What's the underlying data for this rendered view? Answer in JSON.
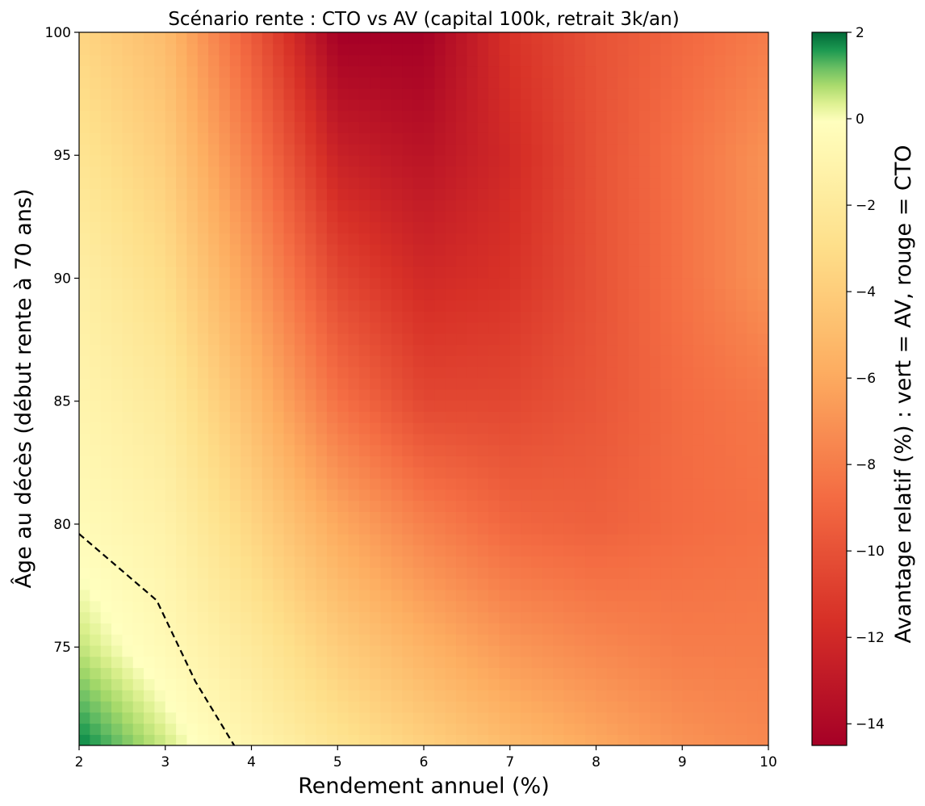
{
  "chart_data": {
    "type": "heatmap",
    "title": "Scénario rente : CTO vs AV (capital 100k, retrait 3k/an)",
    "xlabel": "Rendement annuel (%)",
    "ylabel": "Âge au décès (début rente à 70 ans)",
    "xlim": [
      2,
      10
    ],
    "ylim": [
      71,
      100
    ],
    "xticks": [
      2,
      3,
      4,
      5,
      6,
      7,
      8,
      9,
      10
    ],
    "yticks": [
      75,
      80,
      85,
      90,
      95,
      100
    ],
    "colorbar": {
      "label": "Avantage relatif (%) : vert = AV, rouge = CTO",
      "vmin": -14.5,
      "vmax": 2,
      "center": 0,
      "ticks": [
        2,
        0,
        -2,
        -4,
        -6,
        -8,
        -10,
        -12,
        -14
      ],
      "colormap": "RdYlGn"
    },
    "x": [
      2,
      3,
      4,
      5,
      6,
      7,
      8,
      9,
      10
    ],
    "y": [
      71,
      75,
      80,
      85,
      90,
      95,
      100
    ],
    "values": [
      [
        1.8,
        0.5,
        -1.0,
        -2.5,
        -3.8,
        -5.0,
        -6.0,
        -7.0,
        -7.5
      ],
      [
        0.6,
        -0.5,
        -2.0,
        -4.0,
        -5.5,
        -6.8,
        -7.5,
        -8.0,
        -8.0
      ],
      [
        -0.4,
        -1.2,
        -3.5,
        -6.0,
        -7.8,
        -9.0,
        -9.3,
        -8.8,
        -8.5
      ],
      [
        -1.0,
        -2.0,
        -5.0,
        -8.5,
        -10.5,
        -10.5,
        -9.8,
        -8.8,
        -8.2
      ],
      [
        -1.5,
        -3.0,
        -6.5,
        -10.5,
        -12.0,
        -11.5,
        -10.0,
        -8.5,
        -7.0
      ],
      [
        -2.5,
        -4.0,
        -8.0,
        -12.5,
        -13.3,
        -12.0,
        -10.0,
        -8.5,
        -7.0
      ],
      [
        -3.5,
        -5.0,
        -9.5,
        -14.5,
        -14.5,
        -11.5,
        -10.0,
        -9.0,
        -8.0
      ]
    ],
    "zero_contour": {
      "style": "dashed",
      "color": "#000000",
      "x": [
        2.0,
        2.9,
        3.35,
        3.8
      ],
      "y": [
        79.6,
        76.9,
        73.6,
        71.0
      ]
    }
  }
}
